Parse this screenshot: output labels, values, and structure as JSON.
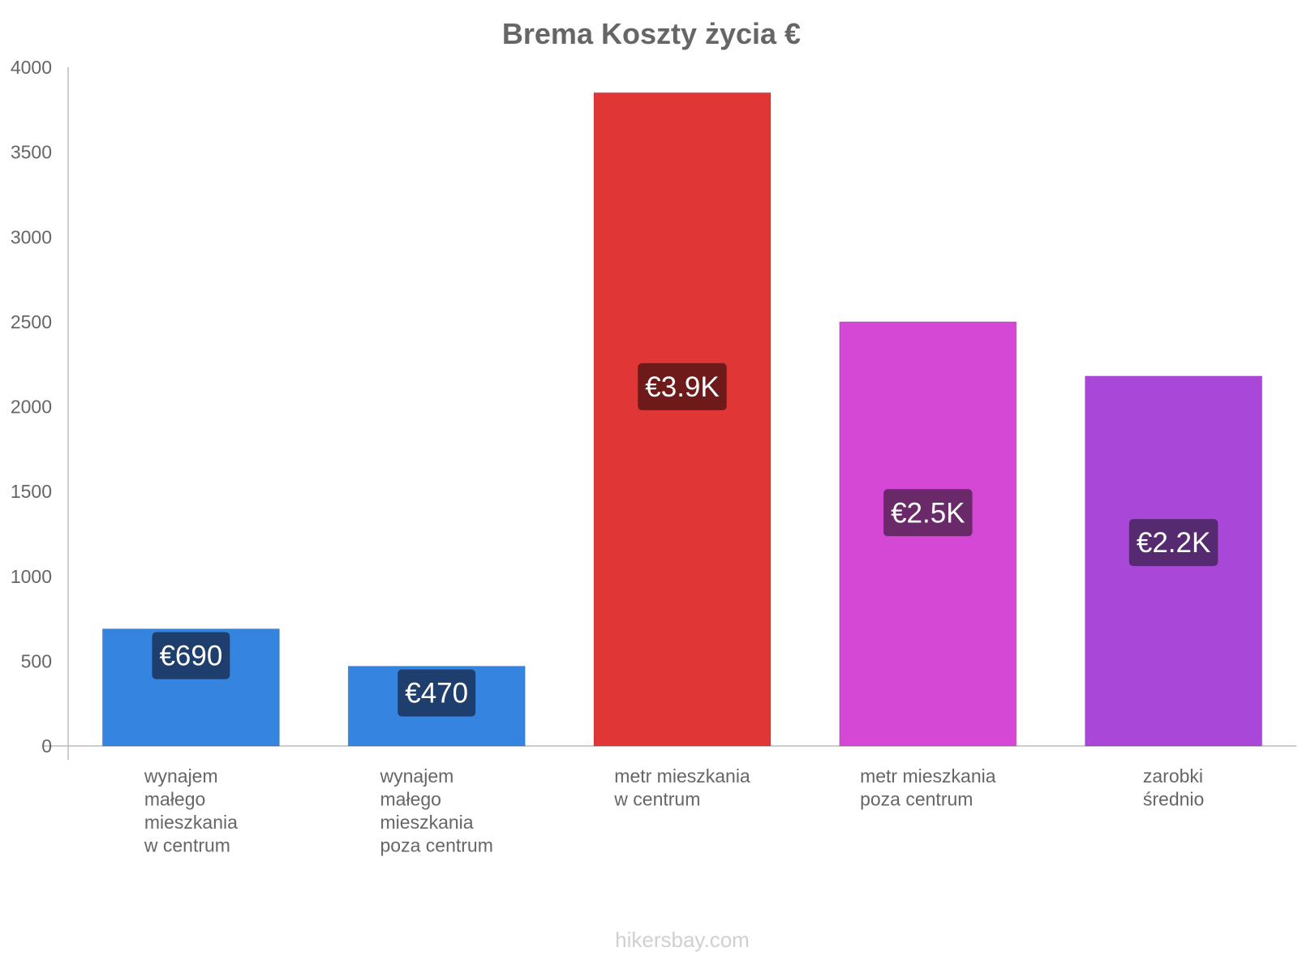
{
  "chart_data": {
    "type": "bar",
    "title": "Brema Koszty życia €",
    "xlabel": "",
    "ylabel": "",
    "ylim": [
      0,
      4000
    ],
    "yticks": [
      0,
      500,
      1000,
      1500,
      2000,
      2500,
      3000,
      3500,
      4000
    ],
    "grid": false,
    "categories": [
      [
        "wynajem",
        "małego",
        "mieszkania",
        "w centrum"
      ],
      [
        "wynajem",
        "małego",
        "mieszkania",
        "poza centrum"
      ],
      [
        "metr mieszkania",
        "w centrum"
      ],
      [
        "metr mieszkania",
        "poza centrum"
      ],
      [
        "zarobki",
        "średnio"
      ]
    ],
    "values": [
      690,
      470,
      3850,
      2500,
      2180
    ],
    "value_labels": [
      "€690",
      "€470",
      "€3.9K",
      "€2.5K",
      "€2.2K"
    ],
    "colors": [
      "#3584e0",
      "#3584e0",
      "#e03636",
      "#d547d5",
      "#a847d8"
    ],
    "label_colors": [
      "#1e3f6e",
      "#1e3f6e",
      "#6e1a1a",
      "#6a2a6a",
      "#552a70"
    ]
  },
  "watermark": "hikersbay.com"
}
